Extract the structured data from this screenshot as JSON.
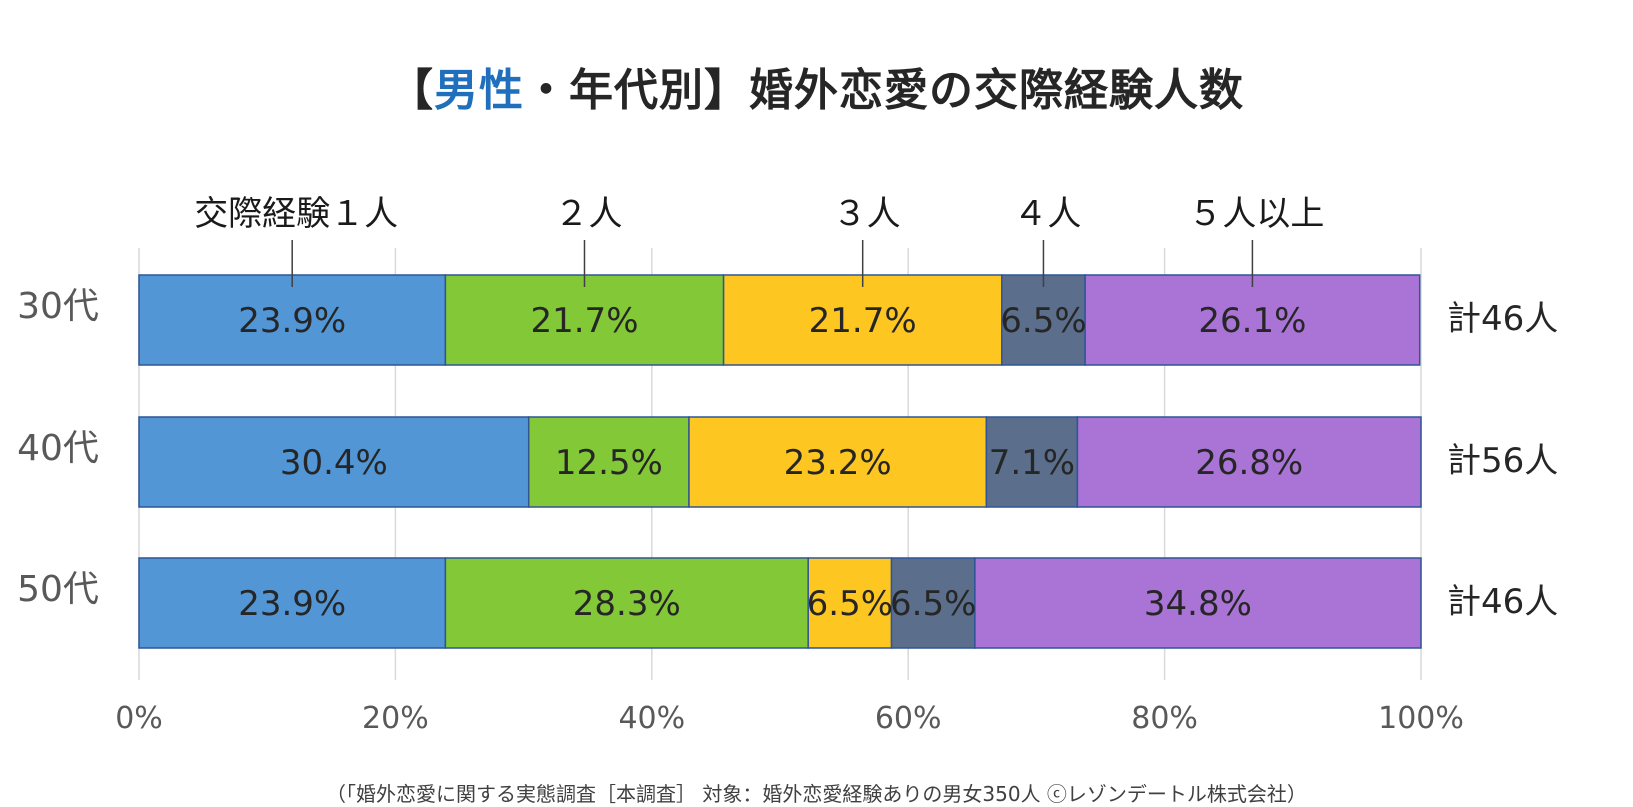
{
  "title": {
    "bracket_open": "【",
    "highlight": "男性",
    "rest": "・年代別】婚外恋愛の交際経験人数"
  },
  "chart_data": {
    "type": "bar",
    "orientation": "horizontal",
    "stacked": "percent",
    "categories": [
      "30代",
      "40代",
      "50代"
    ],
    "series": [
      {
        "name": "交際経験１人",
        "color": "#5296d5",
        "values": [
          23.9,
          30.4,
          23.9
        ]
      },
      {
        "name": "２人",
        "color": "#82c837",
        "values": [
          21.7,
          12.5,
          28.3
        ]
      },
      {
        "name": "３人",
        "color": "#fdc620",
        "values": [
          21.7,
          23.2,
          6.5
        ]
      },
      {
        "name": "４人",
        "color": "#5b6f8c",
        "values": [
          6.5,
          7.1,
          6.5
        ]
      },
      {
        "name": "５人以上",
        "color": "#a974d6",
        "values": [
          26.1,
          26.8,
          34.8
        ]
      }
    ],
    "data_labels": [
      [
        "23.9%",
        "21.7%",
        "21.7%",
        "6.5%",
        "26.1%"
      ],
      [
        "30.4%",
        "12.5%",
        "23.2%",
        "7.1%",
        "26.8%"
      ],
      [
        "23.9%",
        "28.3%",
        "6.5%",
        "6.5%",
        "34.8%"
      ]
    ],
    "totals": [
      "計46人",
      "計56人",
      "計46人"
    ],
    "x_ticks": [
      0,
      20,
      40,
      60,
      80,
      100
    ],
    "x_tick_labels": [
      "0%",
      "20%",
      "40%",
      "60%",
      "80%",
      "100%"
    ],
    "xlim": [
      0,
      100
    ],
    "grid": true,
    "legend_placement": "top, callout lines to first row"
  },
  "source_note": "（「婚外恋愛に関する実態調査［本調査］ 対象：婚外恋愛経験ありの男女350人 ⓒレゾンデートル株式会社）",
  "colors": {
    "title_highlight": "#1f6fbd",
    "text": "#262626",
    "axis_text": "#595959",
    "grid": "#d9d9d9"
  }
}
